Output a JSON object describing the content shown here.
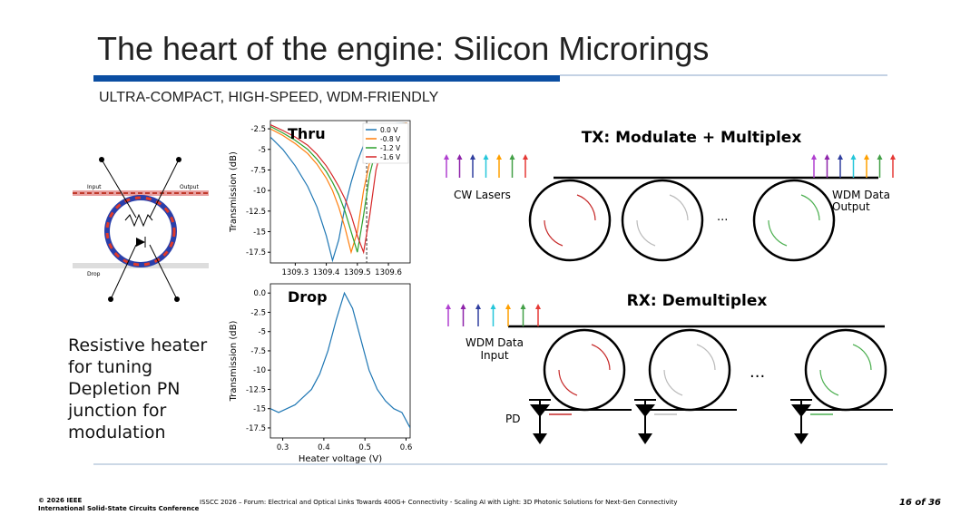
{
  "slide": {
    "title": "The heart of the engine: Silicon Microrings",
    "subtitle": "ULTRA-COMPACT, HIGH-SPEED, WDM-FRIENDLY",
    "caption": [
      "Resistive heater",
      "for tuning",
      "Depletion PN",
      "junction for",
      "modulation"
    ],
    "ring_labels": {
      "input": "Input",
      "output": "Output",
      "drop": "Drop"
    },
    "tx": {
      "title": "TX: Modulate + Multiplex",
      "source": "CW Lasers",
      "output": [
        "WDM Data",
        "Output"
      ],
      "ellipsis": "..."
    },
    "rx": {
      "title": "RX: Demultiplex",
      "input": [
        "WDM Data",
        "Input"
      ],
      "detector": "PD",
      "ellipsis": "..."
    },
    "footer": {
      "copyright": "© 2026 IEEE",
      "org": "International Solid-State Circuits Conference",
      "event": "ISSCC 2026 – Forum: Electrical and Optical Links Towards 400G+ Connectivity - Scaling AI with Light: 3D Photonic Solutions for Next-Gen Connectivity",
      "page": "16 of 36"
    }
  },
  "chart_data": [
    {
      "type": "line",
      "title": "Thru",
      "ylabel": "Transmission (dB)",
      "x": [
        1309.22,
        1309.26,
        1309.3,
        1309.34,
        1309.37,
        1309.4,
        1309.42,
        1309.44,
        1309.46,
        1309.48,
        1309.5,
        1309.52,
        1309.54,
        1309.56,
        1309.58,
        1309.62,
        1309.66
      ],
      "series": [
        {
          "name": "0.0 V",
          "color": "#1f77b4",
          "values": [
            -3.5,
            -5,
            -7,
            -9.5,
            -12,
            -15.5,
            -18.5,
            -16,
            -12,
            -9,
            -6.5,
            -4.5,
            -3,
            -2.4,
            -2.1,
            -1.9,
            -1.8
          ]
        },
        {
          "name": "-0.8 V",
          "color": "#ff7f0e",
          "values": [
            -2.5,
            -3.3,
            -4.3,
            -5.5,
            -6.8,
            -8.5,
            -10,
            -12,
            -14.5,
            -17.5,
            -15,
            -10,
            -6.5,
            -4,
            -2.8,
            -2,
            -1.8
          ]
        },
        {
          "name": "-1.2 V",
          "color": "#2ca02c",
          "values": [
            -2.2,
            -3,
            -3.9,
            -5,
            -6.2,
            -7.7,
            -9,
            -10.5,
            -12.5,
            -15,
            -17.5,
            -13,
            -8,
            -5,
            -3.3,
            -2.2,
            -1.9
          ]
        },
        {
          "name": "-1.6 V",
          "color": "#d62728",
          "values": [
            -2,
            -2.7,
            -3.5,
            -4.5,
            -5.6,
            -7,
            -8.2,
            -9.5,
            -11,
            -13,
            -15.5,
            -17.5,
            -13,
            -7.5,
            -4.5,
            -2.5,
            -2
          ]
        }
      ],
      "vline": 1309.53,
      "xlim": [
        1309.22,
        1309.67
      ],
      "ylim": [
        -18.8,
        -1.5
      ],
      "xticks": [
        1309.3,
        1309.4,
        1309.5,
        1309.6
      ],
      "yticks": [
        -2.5,
        -5,
        -7.5,
        -10,
        -12.5,
        -15,
        -17.5
      ],
      "legend": "upper right"
    },
    {
      "type": "line",
      "title": "Drop",
      "xlabel": "Heater voltage (V)",
      "ylabel": "Transmission (dB)",
      "x": [
        0.27,
        0.29,
        0.31,
        0.33,
        0.35,
        0.37,
        0.39,
        0.41,
        0.43,
        0.45,
        0.47,
        0.49,
        0.51,
        0.53,
        0.55,
        0.57,
        0.59,
        0.61
      ],
      "series": [
        {
          "color": "#1f77b4",
          "values": [
            -15,
            -15.5,
            -15,
            -14.5,
            -13.5,
            -12.5,
            -10.5,
            -7.5,
            -3.5,
            0,
            -2,
            -6,
            -10,
            -12.5,
            -14,
            -15,
            -15.5,
            -17.5
          ]
        }
      ],
      "xlim": [
        0.27,
        0.61
      ],
      "ylim": [
        -18.8,
        1.2
      ],
      "xticks": [
        0.3,
        0.4,
        0.5,
        0.6
      ],
      "yticks": [
        {
          "value": 0,
          "label": "0.0"
        },
        -2.5,
        -5,
        -7.5,
        -10,
        -12.5,
        -15,
        -17.5
      ]
    }
  ]
}
